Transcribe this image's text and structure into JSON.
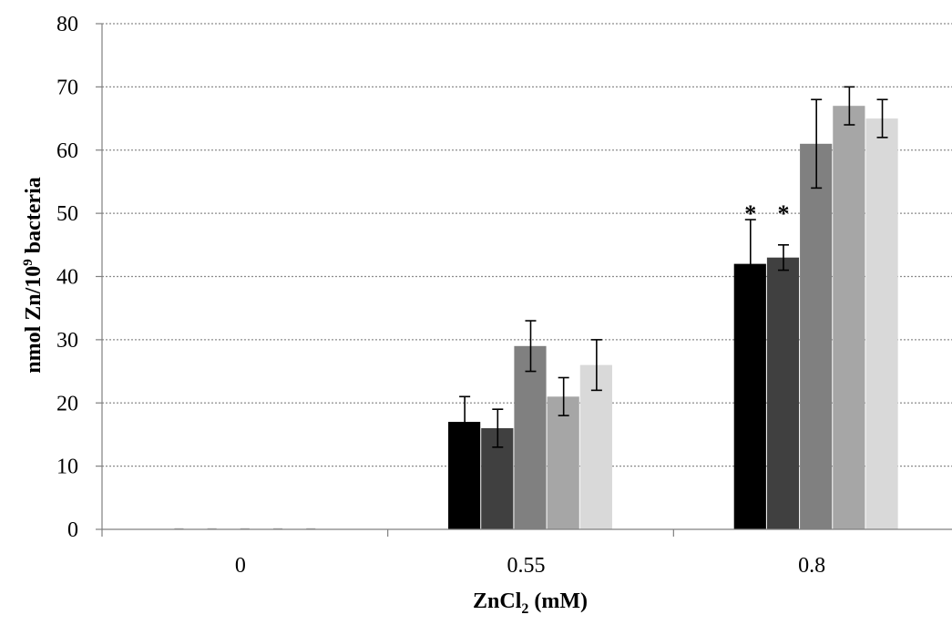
{
  "chart_data": {
    "type": "bar",
    "title": "",
    "xlabel": "ZnCl",
    "xlabel_subscript": "2",
    "xlabel_suffix": " (mM)",
    "ylabel": "nmol Zn/10",
    "ylabel_superscript": "9",
    "ylabel_suffix": " bacteria",
    "ylim": [
      0,
      80
    ],
    "yticks": [
      0,
      10,
      20,
      30,
      40,
      50,
      60,
      70,
      80
    ],
    "grid": true,
    "legend": "none",
    "categories": [
      "0",
      "0.55",
      "0.8"
    ],
    "series": [
      {
        "color": "#000000",
        "values": [
          0,
          17,
          42
        ],
        "errors": [
          0,
          4,
          7
        ]
      },
      {
        "color": "#404040",
        "values": [
          0,
          16,
          43
        ],
        "errors": [
          0,
          3,
          2
        ]
      },
      {
        "color": "#808080",
        "values": [
          0,
          29,
          61
        ],
        "errors": [
          0,
          4,
          7
        ]
      },
      {
        "color": "#a6a6a6",
        "values": [
          0,
          21,
          67
        ],
        "errors": [
          0,
          3,
          3
        ]
      },
      {
        "color": "#d9d9d9",
        "values": [
          0,
          26,
          65
        ],
        "errors": [
          0,
          4,
          3
        ]
      }
    ],
    "annotations": [
      {
        "text": "*",
        "category": "0.8",
        "series_index": 0,
        "y": 51
      },
      {
        "text": "*",
        "category": "0.8",
        "series_index": 1,
        "y": 51
      }
    ]
  }
}
